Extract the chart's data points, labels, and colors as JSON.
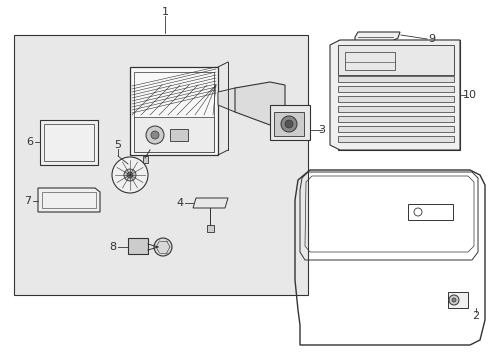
{
  "background_color": "#ffffff",
  "line_color": "#333333",
  "light_gray": "#e8e8e8",
  "mid_gray": "#cccccc",
  "dark_gray": "#888888",
  "box_fill": "#efefef",
  "fig_width": 4.9,
  "fig_height": 3.6,
  "dpi": 100
}
